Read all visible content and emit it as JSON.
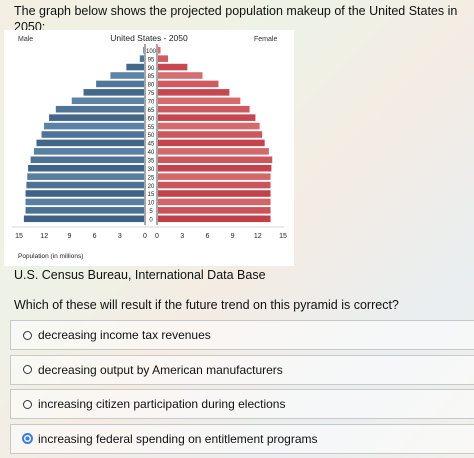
{
  "question": {
    "intro": "The graph below shows the projected population makeup of the United States in 2050:",
    "source": "U.S. Census Bureau, International Data Base",
    "prompt": "Which of these will result if the future trend on this pyramid is correct?"
  },
  "choices": [
    {
      "label": "decreasing income tax revenues",
      "selected": false
    },
    {
      "label": "decreasing output by American manufacturers",
      "selected": false
    },
    {
      "label": "increasing citizen participation during elections",
      "selected": false
    },
    {
      "label": "increasing federal spending on entitlement programs",
      "selected": true
    }
  ],
  "chart_data": {
    "type": "bar",
    "orientation": "horizontal-pyramid",
    "title": "United States - 2050",
    "left_label": "Male",
    "right_label": "Female",
    "xlabel": "Population (in millions)",
    "xlim": [
      0,
      15
    ],
    "left_ticks": [
      "15",
      "12",
      "9",
      "6",
      "3",
      "0"
    ],
    "right_ticks": [
      "0",
      "3",
      "6",
      "9",
      "12",
      "15"
    ],
    "categories": [
      "0",
      "5",
      "10",
      "15",
      "20",
      "25",
      "30",
      "35",
      "40",
      "45",
      "50",
      "55",
      "60",
      "65",
      "70",
      "75",
      "80",
      "85",
      "90",
      "95",
      "100"
    ],
    "series": [
      {
        "name": "Male",
        "color": "#4a7196",
        "values": [
          14.3,
          14.1,
          14.1,
          14.1,
          14.0,
          13.9,
          13.8,
          13.5,
          13.1,
          12.8,
          12.2,
          11.9,
          11.3,
          10.5,
          8.6,
          7.2,
          5.7,
          4.0,
          2.1,
          0.5,
          0.1
        ]
      },
      {
        "name": "Female",
        "color": "#c94d52",
        "values": [
          13.4,
          13.4,
          13.4,
          13.4,
          13.4,
          13.4,
          13.5,
          13.6,
          13.2,
          12.7,
          12.4,
          12.1,
          11.6,
          10.9,
          9.8,
          8.5,
          7.2,
          5.3,
          3.5,
          1.2,
          0.3
        ]
      }
    ],
    "colors": {
      "male_dark": "#3e6285",
      "male_light": "#6f97ba",
      "female_dark": "#c23f4a",
      "female_light": "#e08a86"
    }
  }
}
